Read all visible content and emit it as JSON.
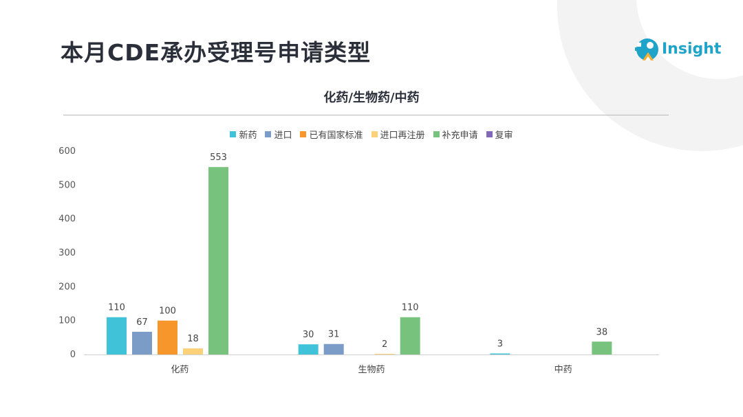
{
  "header": {
    "title": "本月CDE承办受理号申请类型",
    "logo_text": "Insight"
  },
  "colors": {
    "title": "#2b2f3a",
    "logo_teal": "#1fa3c9",
    "deco_gray": "#f1f1f1"
  },
  "chart_data": {
    "type": "bar",
    "title": "化药/生物药/中药",
    "categories": [
      "化药",
      "生物药",
      "中药"
    ],
    "ylim": [
      0,
      600
    ],
    "yticks": [
      0,
      100,
      200,
      300,
      400,
      500,
      600
    ],
    "grid": false,
    "legend_position": "top-center",
    "series": [
      {
        "name": "新药",
        "color": "#40c3d8",
        "values": [
          110,
          30,
          3
        ]
      },
      {
        "name": "进口",
        "color": "#7a9cc6",
        "values": [
          67,
          31,
          null
        ]
      },
      {
        "name": "已有国家标准",
        "color": "#f7962b",
        "values": [
          100,
          null,
          null
        ]
      },
      {
        "name": "进口再注册",
        "color": "#fcd17a",
        "values": [
          18,
          2,
          null
        ]
      },
      {
        "name": "补充申请",
        "color": "#77c27c",
        "values": [
          553,
          110,
          38
        ]
      },
      {
        "name": "复审",
        "color": "#8268b8",
        "values": [
          null,
          null,
          null
        ]
      }
    ]
  }
}
